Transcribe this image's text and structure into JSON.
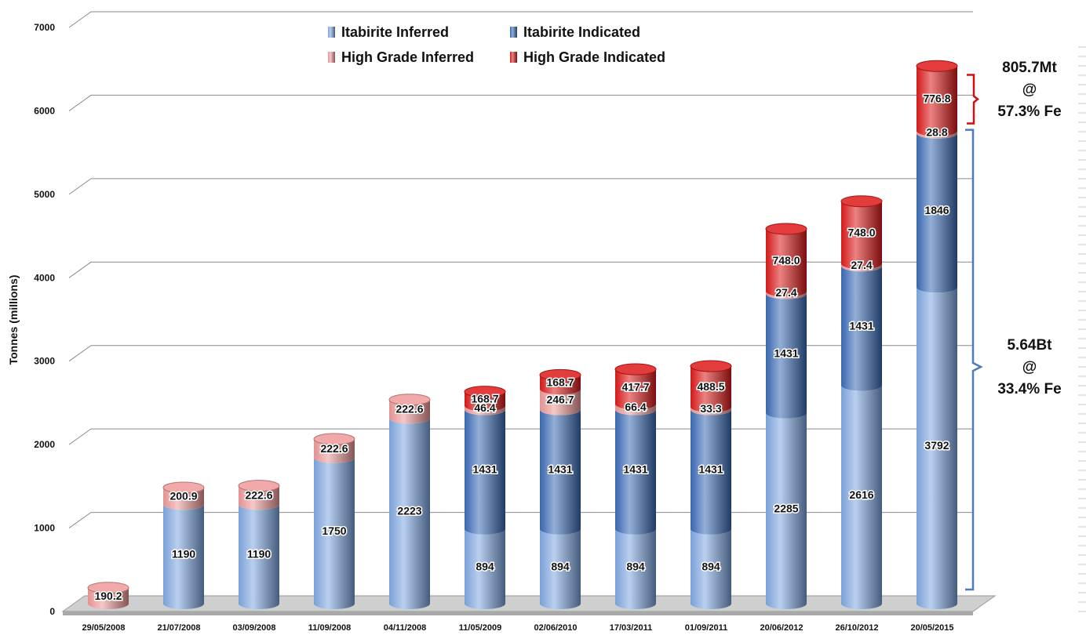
{
  "chart_data": {
    "type": "bar",
    "stacked": true,
    "style": "3d-cylinder",
    "title": "",
    "xlabel": "",
    "ylabel": "Tonnes (millions)",
    "ylim": [
      0,
      7000
    ],
    "yticks": [
      "0",
      "1000",
      "2000",
      "3000",
      "4000",
      "5000",
      "6000",
      "7000"
    ],
    "grid": true,
    "legend_position": "top-center",
    "categories": [
      "29/05/2008",
      "21/07/2008",
      "03/09/2008",
      "11/09/2008",
      "04/11/2008",
      "11/05/2009",
      "02/06/2010",
      "17/03/2011",
      "01/09/2011",
      "20/06/2012",
      "26/10/2012",
      "20/05/2015"
    ],
    "series": [
      {
        "name": "Itabirite Inferred",
        "color": "#7fa8e2",
        "values": [
          0,
          1190,
          1190,
          1750,
          2223,
          894,
          894,
          894,
          894,
          2285,
          2616,
          3792
        ],
        "labels": [
          "",
          "1190",
          "1190",
          "1750",
          "2223",
          "894",
          "894",
          "894",
          "894",
          "2285",
          "2616",
          "3792"
        ]
      },
      {
        "name": "Itabirite Indicated",
        "color": "#3a6cb6",
        "values": [
          0,
          0,
          0,
          0,
          0,
          1431,
          1431,
          1431,
          1431,
          1431,
          1431,
          1846
        ],
        "labels": [
          "",
          "",
          "",
          "",
          "",
          "1431",
          "1431",
          "1431",
          "1431",
          "1431",
          "1431",
          "1846"
        ]
      },
      {
        "name": "High Grade Inferred",
        "color": "#ef9a9a",
        "values": [
          190.2,
          200.9,
          222.6,
          222.6,
          222.6,
          46.4,
          246.7,
          66.4,
          33.3,
          27.4,
          27.4,
          28.8
        ],
        "labels": [
          "190.2",
          "200.9",
          "222.6",
          "222.6",
          "222.6",
          "46.4",
          "246.7",
          "66.4",
          "33.3",
          "27.4",
          "27.4",
          "28.8"
        ]
      },
      {
        "name": "High Grade Indicated",
        "color": "#dd1a1a",
        "values": [
          0,
          0,
          0,
          0,
          0,
          168.7,
          168.7,
          417.7,
          488.5,
          748.0,
          748.0,
          776.8
        ],
        "labels": [
          "",
          "",
          "",
          "",
          "",
          "168.7",
          "168.7",
          "417.7",
          "488.5",
          "748.0",
          "748.0",
          "776.8"
        ]
      }
    ],
    "annotations": [
      {
        "lines": [
          "805.7Mt",
          "@",
          "57.3% Fe"
        ],
        "color": "#cc1111",
        "range": [
          5680,
          6450
        ]
      },
      {
        "lines": [
          "5.64Bt",
          "@",
          "33.4% Fe"
        ],
        "color": "#4a7bc0",
        "range": [
          0,
          5660
        ]
      }
    ]
  }
}
